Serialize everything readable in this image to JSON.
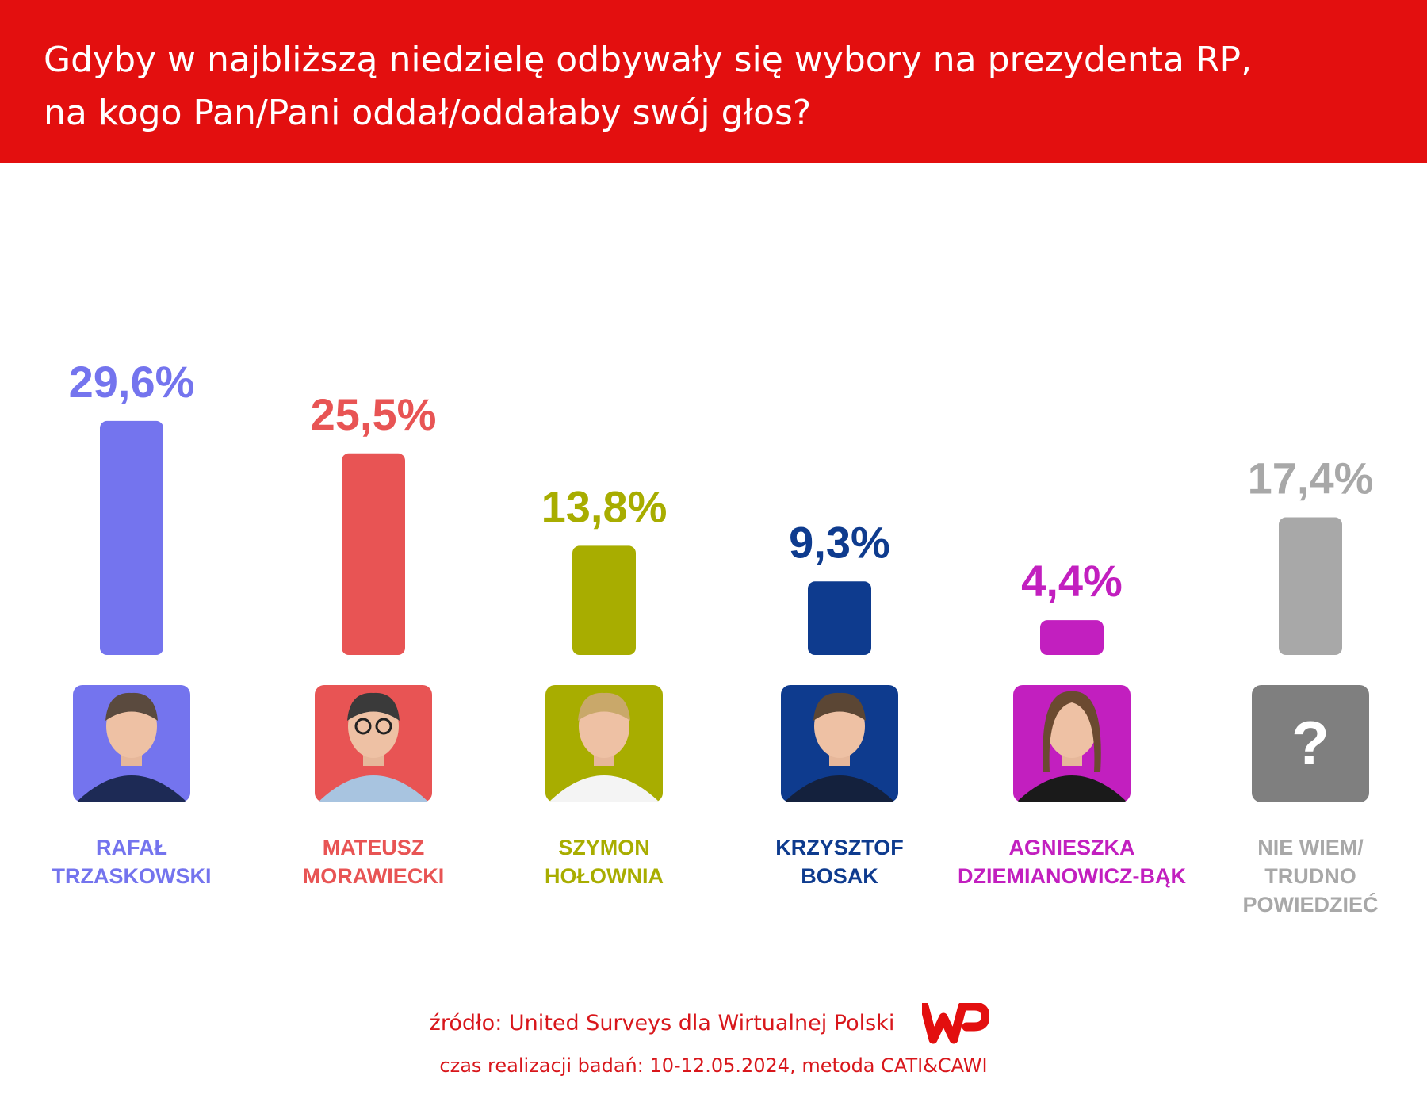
{
  "header": {
    "title_line1": "Gdyby w najbliższą niedzielę odbywały się wybory na prezydenta RP,",
    "title_line2": "na kogo Pan/Pani oddał/oddałaby swój głos?"
  },
  "chart_data": {
    "type": "bar",
    "categories": [
      [
        "RAFAŁ",
        "TRZASKOWSKI"
      ],
      [
        "MATEUSZ",
        "MORAWIECKI"
      ],
      [
        "SZYMON",
        "HOŁOWNIA"
      ],
      [
        "KRZYSZTOF",
        "BOSAK"
      ],
      [
        "AGNIESZKA",
        "DZIEMIANOWICZ-BĄK"
      ],
      [
        "NIE WIEM/",
        "TRUDNO",
        "POWIEDZIEĆ"
      ]
    ],
    "values": [
      29.6,
      25.5,
      13.8,
      9.3,
      4.4,
      17.4
    ],
    "value_labels": [
      "29,6%",
      "25,5%",
      "13,8%",
      "9,3%",
      "4,4%",
      "17,4%"
    ],
    "colors": [
      "#7474ee",
      "#e85454",
      "#a8ad00",
      "#0e3b8e",
      "#c21fbf",
      "#a8a8a8"
    ],
    "label_colors": [
      "#7474ee",
      "#e85454",
      "#a8ad00",
      "#0e3b8e",
      "#c21fbf",
      "#a8a8a8"
    ],
    "photo_icons": [
      "person-photo-icon",
      "person-photo-icon",
      "person-photo-icon",
      "person-photo-icon",
      "person-photo-icon",
      "question-mark-icon"
    ],
    "unknown_symbol": "?",
    "ylim": [
      0,
      30
    ],
    "grid": false,
    "legend": "none"
  },
  "footer": {
    "source": "źródło: United Surveys dla Wirtualnej Polski",
    "time": "czas realizacji badań: 10-12.05.2024, metoda CATI&CAWI",
    "brand_color": "#e30f0f"
  }
}
